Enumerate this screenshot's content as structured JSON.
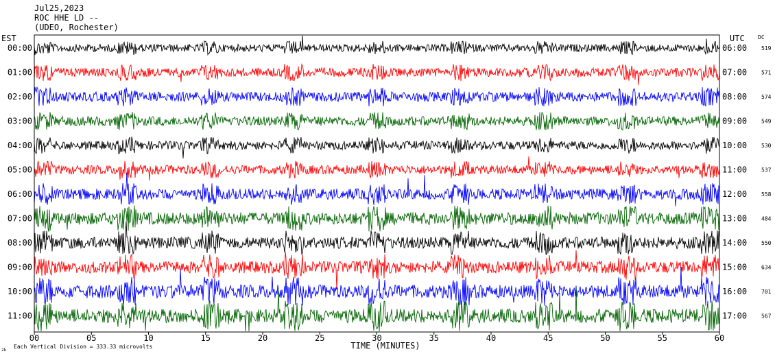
{
  "header": {
    "date": "Jul25,2023",
    "station": "ROC HHE LD --",
    "location": "(UDEO, Rochester)"
  },
  "left_zone": "EST",
  "right_zone": "UTC",
  "dc_label": "DC",
  "scale_note": "Each Vertical Division =  333.33 microvolts",
  "corner_mark": "zk",
  "chart_data": {
    "type": "line",
    "title": "",
    "xlabel": "TIME (MINUTES)",
    "x_ticks": [
      "00",
      "05",
      "10",
      "15",
      "20",
      "25",
      "30",
      "35",
      "40",
      "45",
      "50",
      "55",
      "60"
    ],
    "xlim": [
      0,
      60
    ],
    "grid": false,
    "colors": [
      "#000000",
      "#ff0000",
      "#0000ff",
      "#006400"
    ],
    "rows": [
      {
        "est": "00:00",
        "utc": "06:00",
        "dc": "519"
      },
      {
        "est": "01:00",
        "utc": "07:00",
        "dc": "571"
      },
      {
        "est": "02:00",
        "utc": "08:00",
        "dc": "574"
      },
      {
        "est": "03:00",
        "utc": "09:00",
        "dc": "549"
      },
      {
        "est": "04:00",
        "utc": "10:00",
        "dc": "530"
      },
      {
        "est": "05:00",
        "utc": "11:00",
        "dc": "537"
      },
      {
        "est": "06:00",
        "utc": "12:00",
        "dc": "558"
      },
      {
        "est": "07:00",
        "utc": "13:00",
        "dc": "484"
      },
      {
        "est": "08:00",
        "utc": "14:00",
        "dc": "550"
      },
      {
        "est": "09:00",
        "utc": "15:00",
        "dc": "634"
      },
      {
        "est": "10:00",
        "utc": "16:00",
        "dc": "701"
      },
      {
        "est": "11:00",
        "utc": "17:00",
        "dc": "567"
      }
    ],
    "row_activity": [
      0.55,
      0.75,
      0.85,
      0.8,
      0.7,
      0.75,
      1.0,
      1.25,
      1.15,
      1.2,
      1.4,
      1.5
    ]
  }
}
